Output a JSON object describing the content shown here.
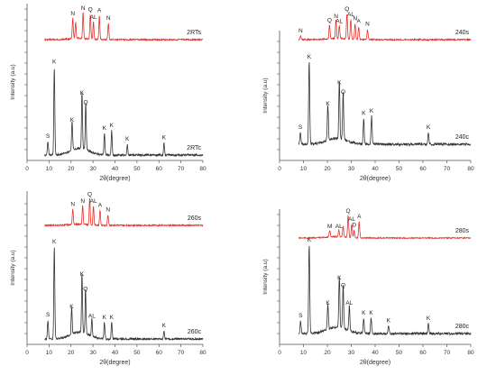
{
  "chart_data": [
    {
      "type": "line",
      "xlabel": "2θ(degree)",
      "ylabel": "Intensity (a.u)",
      "xlim": [
        0,
        80
      ],
      "xticks": [
        0,
        10,
        20,
        30,
        40,
        50,
        60,
        70,
        80
      ],
      "series": [
        {
          "name": "2RTs",
          "color": "#e8302a",
          "peaks": [
            {
              "x": 20.8,
              "h": 0.38,
              "label": "N"
            },
            {
              "x": 22.1,
              "h": 0.3,
              "label": ""
            },
            {
              "x": 25.5,
              "h": 0.48,
              "label": "N"
            },
            {
              "x": 28.8,
              "h": 0.46,
              "label": "Q"
            },
            {
              "x": 30.2,
              "h": 0.32,
              "label": "AL"
            },
            {
              "x": 32.9,
              "h": 0.44,
              "label": "A"
            },
            {
              "x": 37.0,
              "h": 0.3,
              "label": "N"
            }
          ]
        },
        {
          "name": "2RTc",
          "color": "#333333",
          "peaks": [
            {
              "x": 9.5,
              "h": 0.1,
              "label": "S"
            },
            {
              "x": 12.4,
              "h": 0.65,
              "label": "K"
            },
            {
              "x": 20.5,
              "h": 0.22,
              "label": "K"
            },
            {
              "x": 25.0,
              "h": 0.42,
              "label": "K"
            },
            {
              "x": 26.7,
              "h": 0.35,
              "label": "Q"
            },
            {
              "x": 35.2,
              "h": 0.16,
              "label": "K"
            },
            {
              "x": 38.5,
              "h": 0.18,
              "label": "K"
            },
            {
              "x": 45.6,
              "h": 0.08,
              "label": "K"
            },
            {
              "x": 62.3,
              "h": 0.09,
              "label": "K"
            }
          ]
        }
      ]
    },
    {
      "type": "line",
      "xlabel": "2θ(degree)",
      "ylabel": "Intensity (a.u)",
      "xlim": [
        0,
        80
      ],
      "xticks": [
        0,
        10,
        20,
        30,
        40,
        50,
        60,
        70,
        80
      ],
      "series": [
        {
          "name": "240s",
          "color": "#e8302a",
          "peaks": [
            {
              "x": 8.8,
              "h": 0.08,
              "label": "N"
            },
            {
              "x": 20.9,
              "h": 0.32,
              "label": "Q"
            },
            {
              "x": 23.6,
              "h": 0.42,
              "label": "N"
            },
            {
              "x": 25.0,
              "h": 0.3,
              "label": "AL"
            },
            {
              "x": 28.2,
              "h": 0.58,
              "label": "Q"
            },
            {
              "x": 29.8,
              "h": 0.46,
              "label": "AL"
            },
            {
              "x": 31.6,
              "h": 0.36,
              "label": "N"
            },
            {
              "x": 33.1,
              "h": 0.3,
              "label": "A"
            },
            {
              "x": 36.8,
              "h": 0.24,
              "label": "N"
            }
          ]
        },
        {
          "name": "240c",
          "color": "#333333",
          "peaks": [
            {
              "x": 8.7,
              "h": 0.1,
              "label": "S"
            },
            {
              "x": 12.4,
              "h": 0.7,
              "label": "K"
            },
            {
              "x": 20.2,
              "h": 0.3,
              "label": "K"
            },
            {
              "x": 25.0,
              "h": 0.48,
              "label": "K"
            },
            {
              "x": 26.6,
              "h": 0.4,
              "label": "Q"
            },
            {
              "x": 35.2,
              "h": 0.22,
              "label": "K"
            },
            {
              "x": 38.5,
              "h": 0.24,
              "label": "K"
            },
            {
              "x": 62.3,
              "h": 0.1,
              "label": "K"
            }
          ]
        }
      ]
    },
    {
      "type": "line",
      "xlabel": "2θ(degree)",
      "ylabel": "Intensity (a.u)",
      "xlim": [
        0,
        80
      ],
      "xticks": [
        0,
        10,
        20,
        30,
        40,
        50,
        60,
        70,
        80
      ],
      "series": [
        {
          "name": "260s",
          "color": "#e8302a",
          "peaks": [
            {
              "x": 20.8,
              "h": 0.34,
              "label": "N"
            },
            {
              "x": 25.3,
              "h": 0.4,
              "label": "N"
            },
            {
              "x": 28.5,
              "h": 0.55,
              "label": "Q"
            },
            {
              "x": 30.2,
              "h": 0.4,
              "label": "AL"
            },
            {
              "x": 33.2,
              "h": 0.32,
              "label": "A"
            },
            {
              "x": 36.8,
              "h": 0.22,
              "label": "N"
            }
          ]
        },
        {
          "name": "260c",
          "color": "#333333",
          "peaks": [
            {
              "x": 9.5,
              "h": 0.14,
              "label": "S"
            },
            {
              "x": 12.4,
              "h": 0.68,
              "label": "K"
            },
            {
              "x": 20.3,
              "h": 0.2,
              "label": "K"
            },
            {
              "x": 25.0,
              "h": 0.44,
              "label": "K"
            },
            {
              "x": 26.6,
              "h": 0.33,
              "label": "Q"
            },
            {
              "x": 29.5,
              "h": 0.13,
              "label": "AL"
            },
            {
              "x": 35.2,
              "h": 0.12,
              "label": "K"
            },
            {
              "x": 38.5,
              "h": 0.12,
              "label": "K"
            },
            {
              "x": 62.3,
              "h": 0.06,
              "label": "K"
            }
          ]
        }
      ]
    },
    {
      "type": "line",
      "xlabel": "2θ(degree)",
      "ylabel": "Intensity (a.u)",
      "xlim": [
        0,
        80
      ],
      "xticks": [
        0,
        10,
        20,
        30,
        40,
        50,
        60,
        70,
        80
      ],
      "series": [
        {
          "name": "280s",
          "color": "#e8302a",
          "peaks": [
            {
              "x": 21.0,
              "h": 0.12,
              "label": "M"
            },
            {
              "x": 24.8,
              "h": 0.12,
              "label": "AL"
            },
            {
              "x": 26.6,
              "h": 0.2,
              "label": ""
            },
            {
              "x": 28.7,
              "h": 0.4,
              "label": "Q"
            },
            {
              "x": 30.2,
              "h": 0.25,
              "label": "AL"
            },
            {
              "x": 31.2,
              "h": 0.14,
              "label": "D"
            },
            {
              "x": 33.3,
              "h": 0.3,
              "label": "A"
            }
          ]
        },
        {
          "name": "280c",
          "color": "#333333",
          "peaks": [
            {
              "x": 8.8,
              "h": 0.1,
              "label": "S"
            },
            {
              "x": 12.4,
              "h": 0.7,
              "label": "K"
            },
            {
              "x": 20.2,
              "h": 0.2,
              "label": "K"
            },
            {
              "x": 25.0,
              "h": 0.4,
              "label": "K"
            },
            {
              "x": 26.6,
              "h": 0.34,
              "label": "Q"
            },
            {
              "x": 29.2,
              "h": 0.2,
              "label": "AL"
            },
            {
              "x": 35.2,
              "h": 0.12,
              "label": "K"
            },
            {
              "x": 38.3,
              "h": 0.12,
              "label": "K"
            },
            {
              "x": 45.6,
              "h": 0.06,
              "label": "K"
            },
            {
              "x": 62.3,
              "h": 0.08,
              "label": "K"
            }
          ]
        }
      ]
    }
  ]
}
